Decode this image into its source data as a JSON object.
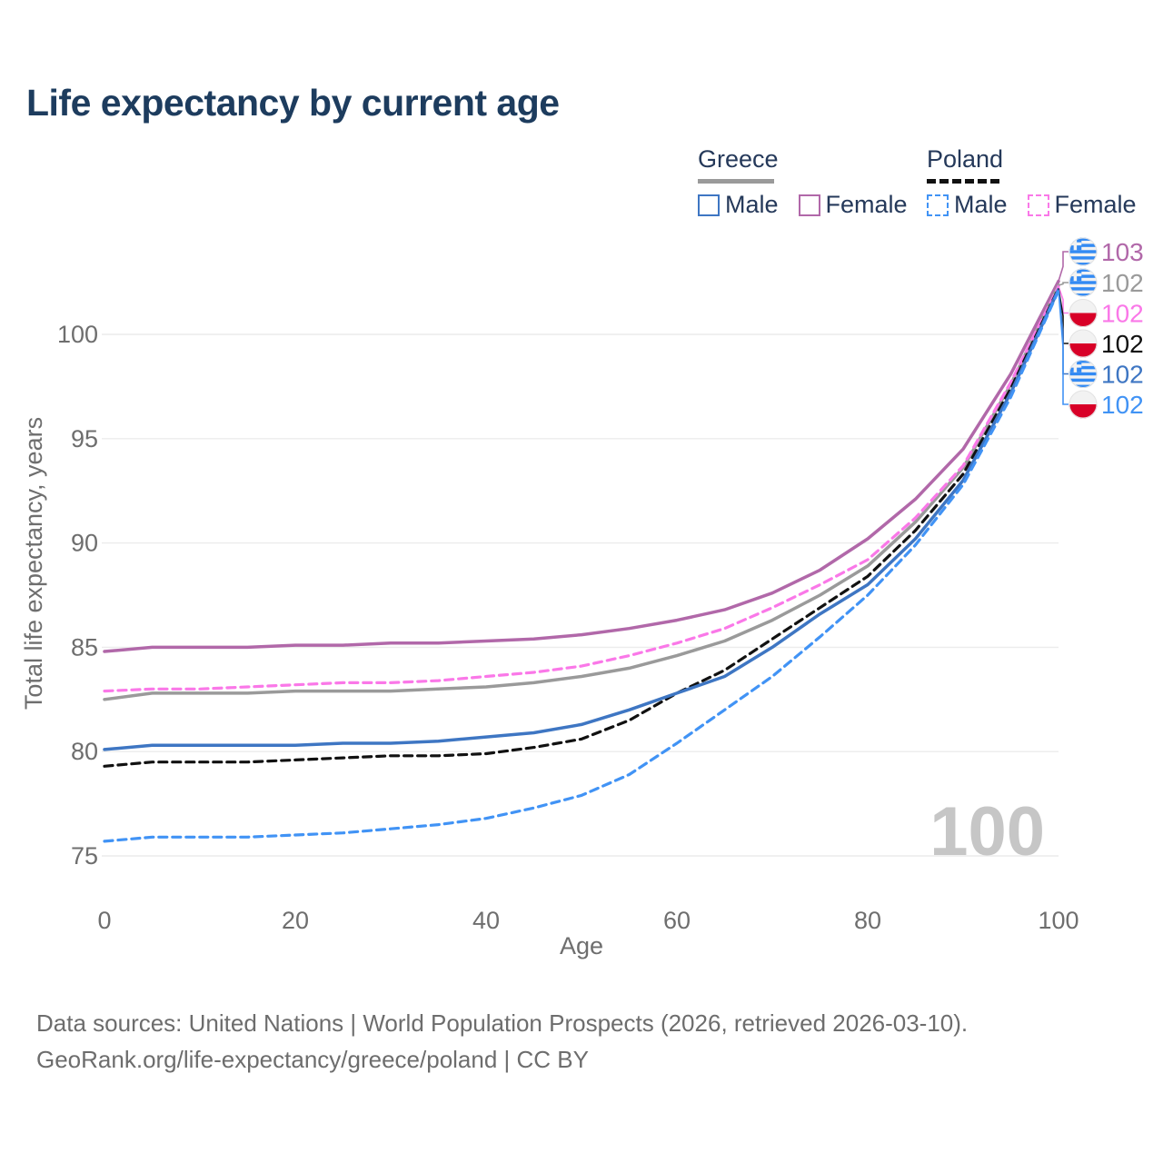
{
  "title": "Life expectancy by current age",
  "legend": {
    "greece": {
      "label": "Greece",
      "male": "Male",
      "female": "Female"
    },
    "poland": {
      "label": "Poland",
      "male": "Male",
      "female": "Female"
    }
  },
  "watermark": "100",
  "footer": {
    "line1": "Data sources: United Nations | World Population Prospects (2026, retrieved 2026-03-10).",
    "line2": "GeoRank.org/life-expectancy/greece/poland | CC BY"
  },
  "colors": {
    "greece_male": "#3e76c3",
    "greece_female": "#b168a9",
    "greece_total": "#9a9a9a",
    "poland_male": "#4193f5",
    "poland_female": "#fa78e8",
    "poland_total": "#111111",
    "grid": "#ececec",
    "axis_text": "#6e6e6e",
    "title_text": "#1d3c5e"
  },
  "chart_data": {
    "type": "line",
    "title": "Life expectancy by current age",
    "xlabel": "Age",
    "ylabel": "Total life expectancy, years",
    "x": [
      0,
      5,
      10,
      15,
      20,
      25,
      30,
      35,
      40,
      45,
      50,
      55,
      60,
      65,
      70,
      75,
      80,
      85,
      90,
      95,
      100
    ],
    "xticks": [
      0,
      20,
      40,
      60,
      80,
      100
    ],
    "yticks": [
      75,
      80,
      85,
      90,
      95,
      100
    ],
    "xlim": [
      0,
      100
    ],
    "ylim": [
      74,
      103
    ],
    "grid": true,
    "legend_position": "top-right",
    "series": [
      {
        "name": "Greece Female",
        "country": "greece",
        "sex": "female",
        "color": "#b168a9",
        "dashed": false,
        "width": 3.5,
        "end_label": "103",
        "values": [
          84.8,
          85.0,
          85.0,
          85.0,
          85.1,
          85.1,
          85.2,
          85.2,
          85.3,
          85.4,
          85.6,
          85.9,
          86.3,
          86.8,
          87.6,
          88.7,
          90.2,
          92.1,
          94.5,
          98.1,
          102.55
        ]
      },
      {
        "name": "Greece Both sexes",
        "country": "greece",
        "sex": "total",
        "color": "#9a9a9a",
        "dashed": false,
        "width": 3.5,
        "end_label": "102",
        "values": [
          82.5,
          82.8,
          82.8,
          82.8,
          82.9,
          82.9,
          82.9,
          83.0,
          83.1,
          83.3,
          83.6,
          84.0,
          84.6,
          85.3,
          86.3,
          87.5,
          88.9,
          91.0,
          93.6,
          97.6,
          102.35
        ]
      },
      {
        "name": "Poland Female",
        "country": "poland",
        "sex": "female",
        "color": "#fa78e8",
        "dashed": true,
        "width": 3.2,
        "end_label": "102",
        "values": [
          82.9,
          83.0,
          83.0,
          83.1,
          83.2,
          83.3,
          83.3,
          83.4,
          83.6,
          83.8,
          84.1,
          84.6,
          85.2,
          85.9,
          86.9,
          88.0,
          89.2,
          91.2,
          93.7,
          97.7,
          102.3
        ]
      },
      {
        "name": "Poland Both sexes",
        "country": "poland",
        "sex": "total",
        "color": "#111111",
        "dashed": true,
        "width": 3.2,
        "end_label": "102",
        "values": [
          79.3,
          79.5,
          79.5,
          79.5,
          79.6,
          79.7,
          79.8,
          79.8,
          79.9,
          80.2,
          80.6,
          81.5,
          82.8,
          83.9,
          85.4,
          86.9,
          88.4,
          90.6,
          93.3,
          97.4,
          102.2
        ]
      },
      {
        "name": "Greece Male",
        "country": "greece",
        "sex": "male",
        "color": "#3e76c3",
        "dashed": false,
        "width": 3.5,
        "end_label": "102",
        "values": [
          80.1,
          80.3,
          80.3,
          80.3,
          80.3,
          80.4,
          80.4,
          80.5,
          80.7,
          80.9,
          81.3,
          82.0,
          82.8,
          83.6,
          85.0,
          86.6,
          88.0,
          90.2,
          93.0,
          97.2,
          102.15
        ]
      },
      {
        "name": "Poland Male",
        "country": "poland",
        "sex": "male",
        "color": "#4193f5",
        "dashed": true,
        "width": 3.2,
        "end_label": "102",
        "values": [
          75.7,
          75.9,
          75.9,
          75.9,
          76.0,
          76.1,
          76.3,
          76.5,
          76.8,
          77.3,
          77.9,
          78.9,
          80.4,
          82.0,
          83.6,
          85.5,
          87.5,
          89.9,
          92.8,
          97.0,
          102.1
        ]
      }
    ]
  }
}
